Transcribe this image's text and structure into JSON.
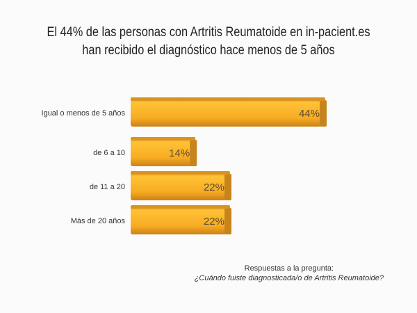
{
  "chart_data": {
    "type": "bar",
    "orientation": "horizontal",
    "title": "El 44% de las personas con Artritis Reumatoide en in-pacient.es han recibido el diagnóstico hace menos de 5 años",
    "categories": [
      "Igual o menos de 5 años",
      "de 6 a 10",
      "de 11 a 20",
      "Más de 20 años"
    ],
    "values": [
      44,
      14,
      22,
      22
    ],
    "data_labels": [
      "44%",
      "14%",
      "22%",
      "22%"
    ],
    "xlim": [
      0,
      44
    ],
    "grid": false,
    "bar_color": "#f5a623",
    "xlabel": "",
    "ylabel": ""
  },
  "note": {
    "line1": "Respuestas a la pregunta:",
    "line2": "¿Cuándo fuiste diagnosticada/o de Artritis Reumatoide?"
  }
}
